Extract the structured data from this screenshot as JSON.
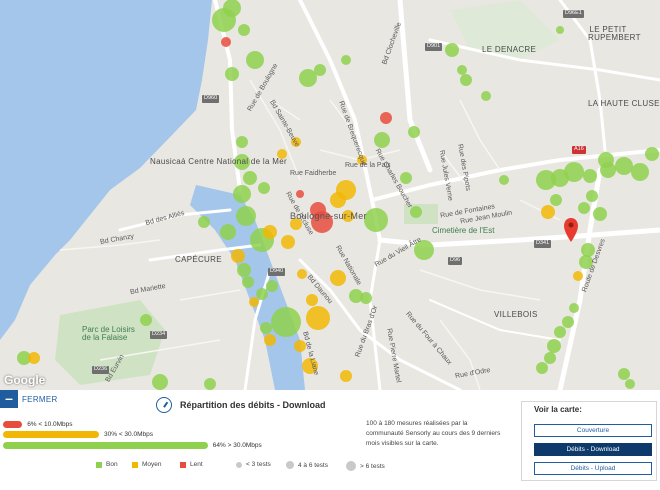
{
  "map": {
    "attribution": "Google",
    "pin_color": "#e63b2e",
    "colors": {
      "bon": "#8fd14f",
      "moyen": "#f2b705",
      "lent": "#e84c3d",
      "sea": "#a3c6ea",
      "land": "#e9e7e2"
    },
    "places": {
      "nausicaa": "Nausicaá Centre National de la Mer",
      "boulogne": "Boulogne-sur-Mer",
      "capecure": "CAPÉCURE",
      "villebois": "VILLEBOIS",
      "denacre": "LE DENACRE",
      "petit_rupembert": "LE PETIT RUPEMBERT",
      "haute_cluse": "LA HAUTE CLUSE",
      "cemetery": "Cimetière de l'Est",
      "parc": "Parc de Loisirs de la Falaise"
    },
    "streets": [
      "Bd Sainte-Beuve",
      "Rue de Brequerecque",
      "Rue de la Paix",
      "Rue de Boulogne",
      "Bd Clocheville",
      "Rue Nationale",
      "Bd des Alliés",
      "Bd Chanzy",
      "Rue Charles Boucher",
      "Rue des Pipots",
      "Rue Jules Verne",
      "Rue de Fontaines",
      "Rue Jean Moulin",
      "Bd Eurvin",
      "Bd Mariette",
      "Rue Faidherbe",
      "Rue du Bras d'Or",
      "Rue du Vieil Âtre",
      "Rue d'Odre",
      "Bd de la Liane",
      "Bd Daunou",
      "Rue du Four à Chaux",
      "Rue Pierre Martel",
      "Route de Desvres",
      "Rue de l'Écluse"
    ],
    "roads": [
      "D960",
      "D940",
      "D901",
      "D96",
      "D341",
      "D236",
      "A16",
      "D234",
      "D96E1"
    ]
  },
  "panel": {
    "close_label": "FERMER",
    "title": "Répartition des débits - Download",
    "bars": [
      {
        "label": "6% < 10.0Mbps",
        "percent": 6,
        "color": "#e84c3d"
      },
      {
        "label": "30% < 30.0Mbps",
        "percent": 30,
        "color": "#f2b705"
      },
      {
        "label": "64% > 30.0Mbps",
        "percent": 64,
        "color": "#8fd14f"
      }
    ],
    "legend": {
      "bon": "Bon",
      "moyen": "Moyen",
      "lent": "Lent",
      "small": "< 3 tests",
      "medium": "4 à 6 tests",
      "large": "> 6 tests"
    },
    "note": "100 à 180 mesures réalisées par la communauté Sensorly au cours des 9 derniers mois visibles sur la carte.",
    "view": {
      "title": "Voir la carte:",
      "buttons": [
        "Couverture",
        "Débits - Download",
        "Débits - Upload"
      ],
      "active_index": 1
    }
  }
}
